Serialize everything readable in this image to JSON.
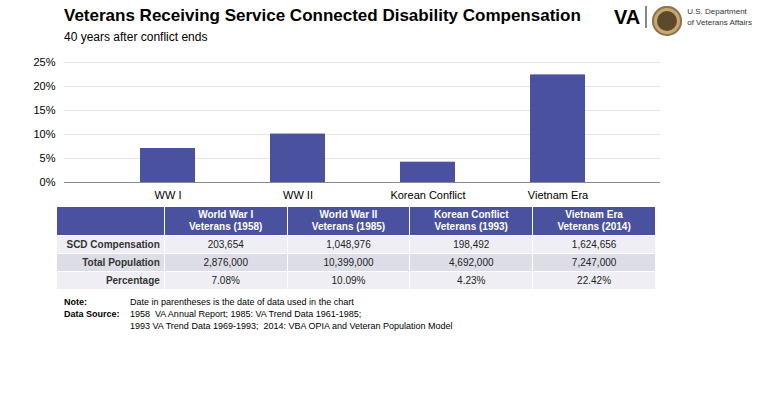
{
  "chart_data": {
    "type": "bar",
    "title": "Veterans Receiving Service Connected Disability Compensation",
    "subtitle": "40 years after conflict ends",
    "categories": [
      "WW I",
      "WW II",
      "Korean Conflict",
      "Vietnam Era"
    ],
    "values": [
      7.08,
      10.09,
      4.23,
      22.42
    ],
    "color": "#4A52A0",
    "ylim": [
      0,
      25
    ],
    "yticks": [
      {
        "value": 0,
        "label": "0%"
      },
      {
        "value": 5,
        "label": "5%"
      },
      {
        "value": 10,
        "label": "10%"
      },
      {
        "value": 15,
        "label": "15%"
      },
      {
        "value": 20,
        "label": "20%"
      },
      {
        "value": 25,
        "label": "25%"
      }
    ],
    "grid": true,
    "table": {
      "columns": [
        "World War I\nVeterans (1958)",
        "World War II\nVeterans (1985)",
        "Korean Conflict\nVeterans (1993)",
        "Vietnam Era\nVeterans (2014)"
      ],
      "rows": [
        [
          "SCD Compensation",
          "203,654",
          "1,048,976",
          "198,492",
          "1,624,656"
        ],
        [
          "Total Population",
          "2,876,000",
          "10,399,000",
          "4,692,000",
          "7,247,000"
        ],
        [
          "Percentage",
          "7.08%",
          "10.09%",
          "4.23%",
          "22.42%"
        ]
      ],
      "header_color": "#4A52A0",
      "header_text_color": "#FFFFFF",
      "row_colors": [
        "#EEEEF4",
        "#DDDDE8"
      ]
    },
    "notes": [
      {
        "label": "Note:",
        "lines": [
          "Date in parentheses is the date of data used in the chart"
        ]
      },
      {
        "label": "Data Source:",
        "lines": [
          "1958  VA Annual Report; 1985: VA Trend Data 1961-1985;",
          "1993 VA Trend Data 1969-1993;  2014: VBA OPIA and Veteran Population Model"
        ]
      }
    ],
    "logo": {
      "text": "VA",
      "caption": "U.S. Department\nof Veterans Affairs"
    }
  }
}
